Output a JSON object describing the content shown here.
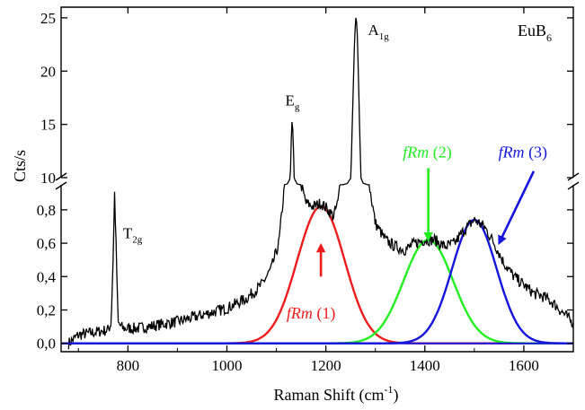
{
  "chart_data": {
    "type": "line",
    "title": "",
    "material": {
      "base": "EuB",
      "sub": "6"
    },
    "xlabel": {
      "pre": "Raman Shift (cm",
      "sup": "-1",
      "post": ")"
    },
    "ylabel": "Cts/s",
    "xlim": [
      665,
      1700
    ],
    "axis_break": true,
    "lower_panel": {
      "ylim": [
        -0.05,
        0.95
      ],
      "yticks": [
        0.0,
        0.2,
        0.4,
        0.6,
        0.8
      ],
      "yticklabels": [
        "0,0",
        "0,2",
        "0,4",
        "0,6",
        "0,8"
      ]
    },
    "upper_panel": {
      "ylim": [
        10,
        26
      ],
      "yticks": [
        10,
        15,
        20,
        25
      ],
      "yticklabels": [
        "10",
        "15",
        "20",
        "25"
      ]
    },
    "xticks": [
      800,
      1000,
      1200,
      1400,
      1600
    ],
    "xticklabels": [
      "800",
      "1000",
      "1200",
      "1400",
      "1600"
    ],
    "phonon_labels": [
      {
        "base": "T",
        "sub": "2g",
        "x": 775
      },
      {
        "base": "E",
        "sub": "g",
        "x": 1132
      },
      {
        "base": "A",
        "sub": "1g",
        "x": 1261
      }
    ],
    "spectrum": {
      "color": "#000000",
      "x": [
        680,
        700,
        720,
        740,
        760,
        766,
        770,
        773,
        776,
        780,
        790,
        820,
        860,
        900,
        950,
        1000,
        1040,
        1070,
        1090,
        1105,
        1115,
        1122,
        1127,
        1130,
        1132,
        1134,
        1137,
        1142,
        1150,
        1160,
        1175,
        1190,
        1205,
        1215,
        1225,
        1235,
        1243,
        1250,
        1255,
        1258,
        1261,
        1264,
        1268,
        1275,
        1285,
        1300,
        1320,
        1340,
        1360,
        1380,
        1400,
        1420,
        1440,
        1460,
        1480,
        1500,
        1520,
        1540,
        1560,
        1580,
        1600,
        1620,
        1640,
        1660,
        1680,
        1700
      ],
      "y": [
        0.0,
        0.05,
        0.06,
        0.07,
        0.08,
        0.12,
        0.5,
        0.9,
        0.6,
        0.12,
        0.09,
        0.09,
        0.11,
        0.13,
        0.17,
        0.21,
        0.27,
        0.35,
        0.45,
        0.6,
        0.9,
        2.0,
        8.0,
        13.5,
        15.8,
        13.5,
        8.0,
        2.0,
        0.95,
        0.84,
        0.82,
        0.84,
        0.8,
        0.76,
        0.85,
        1.2,
        2.5,
        9.0,
        18.0,
        23.0,
        25.4,
        23.0,
        15.0,
        3.0,
        1.0,
        0.72,
        0.62,
        0.58,
        0.56,
        0.6,
        0.62,
        0.62,
        0.58,
        0.6,
        0.68,
        0.74,
        0.7,
        0.6,
        0.48,
        0.4,
        0.35,
        0.3,
        0.28,
        0.24,
        0.18,
        0.12
      ]
    },
    "series": [
      {
        "label": {
          "italic": "fRm",
          "rest": " (1)"
        },
        "color": "#ee1c1c",
        "center": 1190,
        "amplitude": 0.82,
        "sigma": 48,
        "label_x": 1170,
        "label_y": 0.15,
        "arrow_from": [
          1190,
          0.4
        ],
        "arrow_to": [
          1190,
          0.59
        ]
      },
      {
        "label": {
          "italic": "fRm",
          "rest": " (2)"
        },
        "color": "#22ee22",
        "center": 1407,
        "amplitude": 0.62,
        "sigma": 50,
        "label_x": 1405,
        "label_y": 11.9,
        "arrow_from": [
          1407,
          10.9
        ],
        "arrow_to": [
          1407,
          0.62
        ]
      },
      {
        "label": {
          "italic": "fRm",
          "rest": " (3)"
        },
        "color": "#1515dd",
        "center": 1500,
        "amplitude": 0.74,
        "sigma": 45,
        "label_x": 1598,
        "label_y": 11.9,
        "arrow_from": [
          1620,
          10.6
        ],
        "arrow_to": [
          1550,
          0.6
        ]
      }
    ]
  }
}
